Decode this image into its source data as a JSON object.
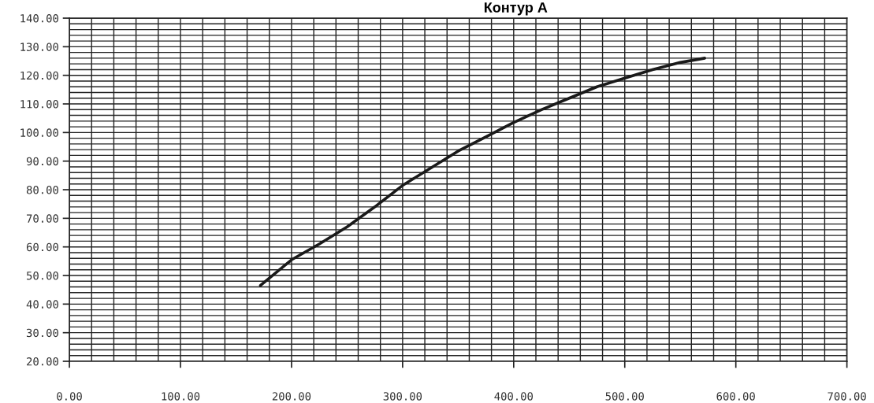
{
  "chart_data": {
    "type": "line",
    "title": "Контур А",
    "x": [
      172,
      200,
      225,
      250,
      275,
      300,
      325,
      350,
      375,
      400,
      425,
      450,
      475,
      500,
      525,
      550,
      572
    ],
    "series": [
      {
        "color": "#1a1a1a",
        "values": [
          46.5,
          55.5,
          61,
          67,
          74,
          81.5,
          87.5,
          93.5,
          98.5,
          103.5,
          108,
          112,
          116,
          119,
          122,
          124.5,
          126
        ]
      }
    ],
    "xlim": [
      0,
      700
    ],
    "ylim": [
      20,
      140
    ],
    "xticks": [
      {
        "value": 0,
        "label": "0.00"
      },
      {
        "value": 20,
        "label": null
      },
      {
        "value": 40,
        "label": null
      },
      {
        "value": 60,
        "label": null
      },
      {
        "value": 80,
        "label": null
      },
      {
        "value": 100,
        "label": "100.00"
      },
      {
        "value": 120,
        "label": null
      },
      {
        "value": 140,
        "label": null
      },
      {
        "value": 160,
        "label": null
      },
      {
        "value": 180,
        "label": null
      },
      {
        "value": 200,
        "label": "200.00"
      },
      {
        "value": 220,
        "label": null
      },
      {
        "value": 240,
        "label": null
      },
      {
        "value": 260,
        "label": null
      },
      {
        "value": 280,
        "label": null
      },
      {
        "value": 300,
        "label": "300.00"
      },
      {
        "value": 320,
        "label": null
      },
      {
        "value": 340,
        "label": null
      },
      {
        "value": 360,
        "label": null
      },
      {
        "value": 380,
        "label": null
      },
      {
        "value": 400,
        "label": "400.00"
      },
      {
        "value": 420,
        "label": null
      },
      {
        "value": 440,
        "label": null
      },
      {
        "value": 460,
        "label": null
      },
      {
        "value": 480,
        "label": null
      },
      {
        "value": 500,
        "label": "500.00"
      },
      {
        "value": 520,
        "label": null
      },
      {
        "value": 540,
        "label": null
      },
      {
        "value": 560,
        "label": null
      },
      {
        "value": 580,
        "label": null
      },
      {
        "value": 600,
        "label": "600.00"
      },
      {
        "value": 620,
        "label": null
      },
      {
        "value": 640,
        "label": null
      },
      {
        "value": 660,
        "label": null
      },
      {
        "value": 680,
        "label": null
      },
      {
        "value": 700,
        "label": "700.00"
      }
    ],
    "yticks": [
      {
        "value": 20,
        "label": "20.00"
      },
      {
        "value": 22,
        "label": null
      },
      {
        "value": 24,
        "label": null
      },
      {
        "value": 26,
        "label": null
      },
      {
        "value": 28,
        "label": null
      },
      {
        "value": 30,
        "label": "30.00"
      },
      {
        "value": 32,
        "label": null
      },
      {
        "value": 34,
        "label": null
      },
      {
        "value": 36,
        "label": null
      },
      {
        "value": 38,
        "label": null
      },
      {
        "value": 40,
        "label": "40.00"
      },
      {
        "value": 42,
        "label": null
      },
      {
        "value": 44,
        "label": null
      },
      {
        "value": 46,
        "label": null
      },
      {
        "value": 48,
        "label": null
      },
      {
        "value": 50,
        "label": "50.00"
      },
      {
        "value": 52,
        "label": null
      },
      {
        "value": 54,
        "label": null
      },
      {
        "value": 56,
        "label": null
      },
      {
        "value": 58,
        "label": null
      },
      {
        "value": 60,
        "label": "60.00"
      },
      {
        "value": 62,
        "label": null
      },
      {
        "value": 64,
        "label": null
      },
      {
        "value": 66,
        "label": null
      },
      {
        "value": 68,
        "label": null
      },
      {
        "value": 70,
        "label": "70.00"
      },
      {
        "value": 72,
        "label": null
      },
      {
        "value": 74,
        "label": null
      },
      {
        "value": 76,
        "label": null
      },
      {
        "value": 78,
        "label": null
      },
      {
        "value": 80,
        "label": "80.00"
      },
      {
        "value": 82,
        "label": null
      },
      {
        "value": 84,
        "label": null
      },
      {
        "value": 86,
        "label": null
      },
      {
        "value": 88,
        "label": null
      },
      {
        "value": 90,
        "label": "90.00"
      },
      {
        "value": 92,
        "label": null
      },
      {
        "value": 94,
        "label": null
      },
      {
        "value": 96,
        "label": null
      },
      {
        "value": 98,
        "label": null
      },
      {
        "value": 100,
        "label": "100.00"
      },
      {
        "value": 102,
        "label": null
      },
      {
        "value": 104,
        "label": null
      },
      {
        "value": 106,
        "label": null
      },
      {
        "value": 108,
        "label": null
      },
      {
        "value": 110,
        "label": "110.00"
      },
      {
        "value": 112,
        "label": null
      },
      {
        "value": 114,
        "label": null
      },
      {
        "value": 116,
        "label": null
      },
      {
        "value": 118,
        "label": null
      },
      {
        "value": 120,
        "label": "120.00"
      },
      {
        "value": 122,
        "label": null
      },
      {
        "value": 124,
        "label": null
      },
      {
        "value": 126,
        "label": null
      },
      {
        "value": 128,
        "label": null
      },
      {
        "value": 130,
        "label": "130.00"
      },
      {
        "value": 132,
        "label": null
      },
      {
        "value": 134,
        "label": null
      },
      {
        "value": 136,
        "label": null
      },
      {
        "value": 138,
        "label": null
      },
      {
        "value": 140,
        "label": "140.00"
      }
    ],
    "grid": true,
    "marker": "none",
    "line_style": "solid"
  }
}
